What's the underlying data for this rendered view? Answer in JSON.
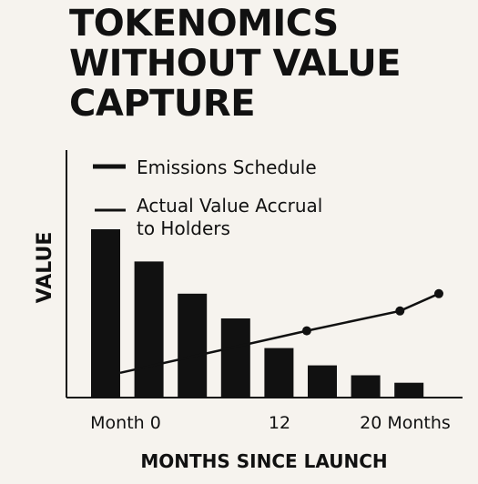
{
  "chart_data": {
    "type": "bar",
    "title_lines": [
      "TOKENOMICS",
      "WITHOUT VALUE",
      "CAPTURE"
    ],
    "xlabel": "MONTHS SINCE LAUNCH",
    "ylabel": "VALUE",
    "categories": [
      "Month 0",
      "",
      "",
      "",
      "12",
      "",
      "",
      "20 Months"
    ],
    "x_tick_labels": [
      "Month 0",
      "12",
      "20 Months"
    ],
    "grid": false,
    "legend_placement": "top-left",
    "legend": [
      "Emissions Schedule",
      "Actual Value Accrual to Holders"
    ],
    "ylim": [
      0,
      100
    ],
    "series": [
      {
        "name": "Emissions Schedule",
        "type": "bar",
        "values": [
          68,
          55,
          42,
          32,
          20,
          13,
          9,
          6
        ]
      },
      {
        "name": "Actual Value Accrual to Holders",
        "type": "line",
        "x": [
          0,
          12,
          18,
          20.5
        ],
        "values": [
          10,
          27,
          35,
          42
        ],
        "markers_at": [
          12,
          18,
          20.5
        ]
      }
    ],
    "colors": {
      "bars": "#111111",
      "line": "#111111",
      "background": "#f6f3ee"
    }
  }
}
